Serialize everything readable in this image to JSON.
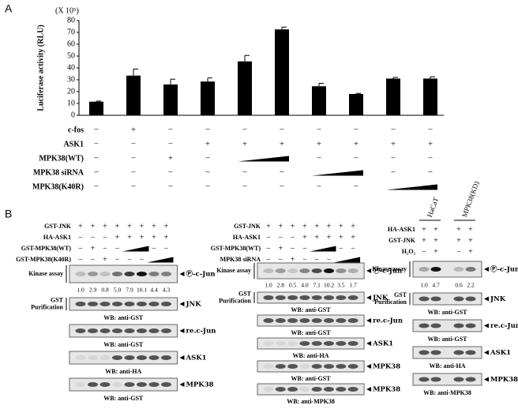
{
  "panel_a": {
    "label": "A",
    "multiplier": "(X 10⁵)"
  },
  "chart_data": {
    "type": "bar",
    "ylabel": "Luciferase activity (RLU)",
    "values": [
      11.5,
      33.5,
      26,
      28.5,
      45.5,
      72.5,
      24.5,
      18,
      31,
      31
    ],
    "errors": [
      0.5,
      5.5,
      4.5,
      3,
      5,
      2,
      2.5,
      0.5,
      1,
      1.5
    ],
    "color": "#000000",
    "ylim": [
      0,
      80
    ],
    "yticks": [
      0,
      10,
      20,
      30,
      40,
      50,
      60,
      70,
      80
    ]
  },
  "conditions": {
    "rows": [
      {
        "label": "c-fos",
        "cells": [
          "−",
          "+",
          "−",
          "−",
          "−",
          "−",
          "−",
          "−",
          "−",
          "−"
        ]
      },
      {
        "label": "ASK1",
        "cells": [
          "−",
          "−",
          "−",
          "+",
          "+",
          "+",
          "+",
          "+",
          "+",
          "+"
        ]
      },
      {
        "label": "MPK38(WT)",
        "cells": [
          "−",
          "−",
          "+",
          "−",
          null,
          null,
          "−",
          "−",
          "−",
          "−"
        ]
      },
      {
        "label": "MPK38 siRNA",
        "cells": [
          "−",
          "−",
          "−",
          "−",
          "−",
          "−",
          null,
          null,
          "−",
          "−"
        ]
      },
      {
        "label": "MPK38(K40R)",
        "cells": [
          "−",
          "−",
          "−",
          "−",
          "−",
          "−",
          "−",
          "−",
          null,
          null
        ]
      }
    ]
  },
  "panel_b": {
    "label": "B",
    "panels": [
      {
        "rows": [
          {
            "label": "GST-JNK",
            "cells": [
              "+",
              "+",
              "+",
              "+",
              "+",
              "+",
              "+",
              "+"
            ]
          },
          {
            "label": "HA-ASK1",
            "cells": [
              "−",
              "−",
              "−",
              "+",
              "+",
              "+",
              "+",
              "+"
            ]
          },
          {
            "label": "GST-MPK38(WT)",
            "cells": [
              "−",
              "+",
              "−",
              "−",
              null,
              null,
              "−",
              "−"
            ]
          },
          {
            "label": "GST-MPK38(K40R)",
            "cells": [
              "−",
              "−",
              "+",
              "−",
              "−",
              "−",
              null,
              null
            ]
          }
        ],
        "kinase": {
          "label": "Kinase assay",
          "target": "Ⓟ-c-Jun",
          "values": [
            1,
            2.9,
            0.8,
            5,
            7.9,
            10.1,
            4.4,
            4.3
          ],
          "value_labels": [
            "1.0",
            "2.9",
            "0.8",
            "5.0",
            "7.9",
            "10.1",
            "4.4",
            "4.3"
          ]
        },
        "blots": [
          {
            "side": [
              "GST",
              "Purification"
            ],
            "target": "JNK",
            "wb": "WB: anti-GST"
          },
          {
            "target": "re.c-Jun",
            "wb": "WB: anti-GST"
          },
          {
            "target": "ASK1",
            "wb": "WB: anti-HA"
          },
          {
            "target": "MPK38",
            "wb": "WB: anti-GST"
          }
        ]
      },
      {
        "rows": [
          {
            "label": "GST-JNK",
            "cells": [
              "+",
              "+",
              "+",
              "+",
              "+",
              "+",
              "+",
              "+"
            ]
          },
          {
            "label": "HA-ASK1",
            "cells": [
              "−",
              "−",
              "−",
              "+",
              "+",
              "+",
              "+",
              "+"
            ]
          },
          {
            "label": "GST-MPK38(WT)",
            "cells": [
              "−",
              "+",
              "−",
              "−",
              null,
              null,
              "−",
              "−"
            ]
          },
          {
            "label": "MPK38 siRNA",
            "cells": [
              "−",
              "−",
              "+",
              "−",
              "−",
              "−",
              null,
              null
            ]
          }
        ],
        "kinase": {
          "label": "Kinase assay",
          "target": "Ⓟ-c-Jun",
          "values": [
            1,
            2.8,
            0.5,
            4,
            7.1,
            10.2,
            3.5,
            1.7
          ],
          "value_labels": [
            "1.0",
            "2.8",
            "0.5",
            "4.0",
            "7.1",
            "10.2",
            "3.5",
            "1.7"
          ]
        },
        "blots": [
          {
            "side": [
              "GST",
              "Purification"
            ],
            "target": "JNK",
            "wb": "WB: anti-GST"
          },
          {
            "target": "re.c-Jun",
            "wb": "WB: anti-GST"
          },
          {
            "target": "ASK1",
            "wb": "WB: anti-HA"
          },
          {
            "target": "MPK38",
            "wb": "WB: anti-GST"
          },
          {
            "target": "MPK38",
            "wb": "WB: anti-MPK38"
          }
        ]
      },
      {
        "headers": [
          "HaCaT",
          "MPK38(KD)"
        ],
        "rows": [
          {
            "label": "HA-ASK1",
            "cells": [
              "+",
              "+",
              "+",
              "+"
            ]
          },
          {
            "label": "GST-JNK",
            "cells": [
              "+",
              "+",
              "+",
              "+"
            ]
          },
          {
            "label": "H₂O₂",
            "cells": [
              "−",
              "+",
              "−",
              "+"
            ]
          }
        ],
        "kinase": {
          "label": "Kinase assay",
          "target": "Ⓟ-c-Jun",
          "values": [
            1,
            4.7,
            0.6,
            2.2
          ],
          "value_labels": [
            "1.0",
            "4.7",
            "0.6",
            "2.2"
          ]
        },
        "blots": [
          {
            "side": [
              "GST",
              "Purification"
            ],
            "target": "JNK",
            "wb": "WB: anti-GST"
          },
          {
            "target": "re.c-Jun",
            "wb": "WB: anti-GST"
          },
          {
            "target": "ASK1",
            "wb": "WB: anti-HA"
          },
          {
            "target": "MPK38",
            "wb": "WB: anti-MPK38"
          }
        ]
      }
    ]
  }
}
